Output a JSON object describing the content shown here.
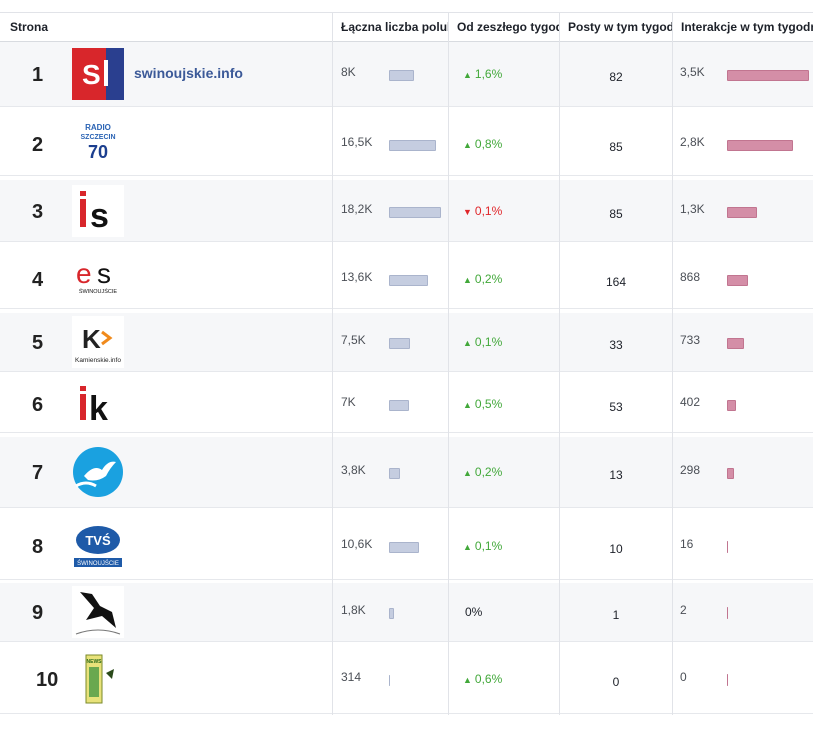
{
  "header": {
    "col_page": "Strona",
    "col_total": "Łączna liczba polub",
    "col_change": "Od zeszłego tygod",
    "col_posts": "Posty w tym tygod",
    "col_interactions": "Interakcje w tym tygodn"
  },
  "rows": [
    {
      "rank": "1",
      "name": "swinoujskie.info",
      "logo_text": "SI",
      "total": "8K",
      "total_fill": 0.49,
      "change": "1,6%",
      "change_dir": "up",
      "posts": "82",
      "interactions": "3,5K",
      "inter_fill": 1.0
    },
    {
      "rank": "2",
      "name": "",
      "logo_text": "RADIO SZCZECIN 70",
      "total": "16,5K",
      "total_fill": 0.91,
      "change": "0,8%",
      "change_dir": "up",
      "posts": "85",
      "interactions": "2,8K",
      "inter_fill": 0.8
    },
    {
      "rank": "3",
      "name": "",
      "logo_text": "is",
      "total": "18,2K",
      "total_fill": 1.0,
      "change": "0,1%",
      "change_dir": "down",
      "posts": "85",
      "interactions": "1,3K",
      "inter_fill": 0.37
    },
    {
      "rank": "4",
      "name": "",
      "logo_text": "es",
      "logo_sub": "ŚWINOUJŚCIE",
      "total": "13,6K",
      "total_fill": 0.75,
      "change": "0,2%",
      "change_dir": "up",
      "posts": "164",
      "interactions": "868",
      "inter_fill": 0.25
    },
    {
      "rank": "5",
      "name": "",
      "logo_text": "K",
      "logo_sub": "Kamienskie.info",
      "total": "7,5K",
      "total_fill": 0.41,
      "change": "0,1%",
      "change_dir": "up",
      "posts": "33",
      "interactions": "733",
      "inter_fill": 0.21
    },
    {
      "rank": "6",
      "name": "",
      "logo_text": "ik",
      "total": "7K",
      "total_fill": 0.38,
      "change": "0,5%",
      "change_dir": "up",
      "posts": "53",
      "interactions": "402",
      "inter_fill": 0.11
    },
    {
      "rank": "7",
      "name": "",
      "logo_text": "",
      "total": "3,8K",
      "total_fill": 0.21,
      "change": "0,2%",
      "change_dir": "up",
      "posts": "13",
      "interactions": "298",
      "inter_fill": 0.085
    },
    {
      "rank": "8",
      "name": "",
      "logo_text": "TVŚ",
      "logo_sub": "ŚWINOUJŚCIE",
      "total": "10,6K",
      "total_fill": 0.58,
      "change": "0,1%",
      "change_dir": "up",
      "posts": "10",
      "interactions": "16",
      "inter_fill": 0.0
    },
    {
      "rank": "9",
      "name": "",
      "logo_text": "",
      "total": "1,8K",
      "total_fill": 0.1,
      "change": "0%",
      "change_dir": "flat",
      "posts": "1",
      "interactions": "2",
      "inter_fill": 0.0
    },
    {
      "rank": "10",
      "name": "",
      "logo_text": "",
      "total": "314",
      "total_fill": 0.0,
      "change": "0,6%",
      "change_dir": "up",
      "posts": "0",
      "interactions": "0",
      "inter_fill": 0.0
    }
  ],
  "colors": {
    "up": "#42a83a",
    "down": "#e0262a",
    "fans_bar": "#c5cde0",
    "interactions_bar": "#d48ea7",
    "page_name": "#3b5998"
  }
}
